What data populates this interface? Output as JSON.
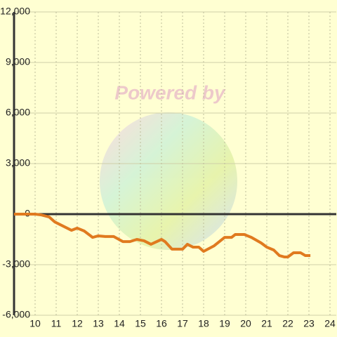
{
  "chart_data": {
    "type": "line",
    "watermark": "Powered by",
    "x": [
      9,
      10,
      10.27,
      10.67,
      10.93,
      11.33,
      11.73,
      12,
      12.33,
      12.73,
      13,
      13.33,
      13.73,
      14.17,
      14.5,
      14.83,
      15.17,
      15.5,
      16,
      16.17,
      16.5,
      17,
      17.23,
      17.5,
      17.77,
      18,
      18.5,
      19,
      19.33,
      19.5,
      19.93,
      20.27,
      20.73,
      21,
      21.33,
      21.6,
      21.83,
      22,
      22.27,
      22.6,
      22.83,
      23.07
    ],
    "series": [
      {
        "color": "#e07a1f",
        "values": [
          0,
          0,
          -40,
          -170,
          -460,
          -710,
          -960,
          -830,
          -1000,
          -1380,
          -1290,
          -1330,
          -1330,
          -1630,
          -1630,
          -1500,
          -1580,
          -1790,
          -1500,
          -1630,
          -2080,
          -2080,
          -1790,
          -1960,
          -1960,
          -2210,
          -1880,
          -1380,
          -1380,
          -1210,
          -1210,
          -1380,
          -1710,
          -1960,
          -2130,
          -2460,
          -2540,
          -2540,
          -2290,
          -2290,
          -2460,
          -2460
        ]
      }
    ],
    "xlim": [
      9,
      24.3
    ],
    "xticks": [
      10,
      11,
      12,
      13,
      14,
      15,
      16,
      17,
      18,
      19,
      20,
      21,
      22,
      23,
      24
    ],
    "ylim": [
      -6000,
      12000
    ],
    "yticks": [
      {
        "value": -6000,
        "label": "-6,000"
      },
      {
        "value": -3000,
        "label": "-3,000"
      },
      0,
      {
        "value": 3000,
        "label": "3,000"
      },
      {
        "value": 6000,
        "label": "6,000"
      },
      {
        "value": 9000,
        "label": "9,000"
      },
      {
        "value": 12000,
        "label": "12,000"
      }
    ],
    "grid": true
  }
}
